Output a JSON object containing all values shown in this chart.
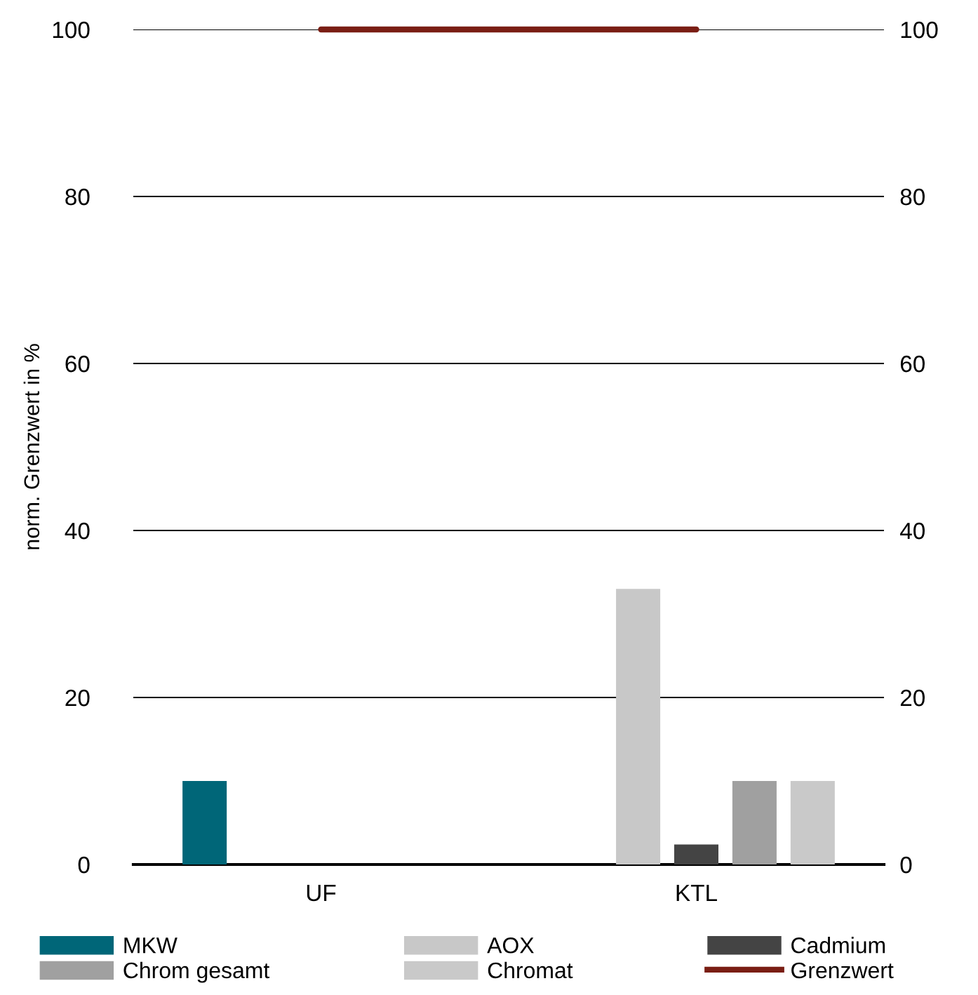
{
  "chart_data": {
    "type": "bar",
    "ylabel": "norm. Grenzwert in %",
    "categories": [
      "UF",
      "KTL"
    ],
    "series": [
      {
        "name": "MKW",
        "color": "#006678",
        "values": [
          10,
          null
        ]
      },
      {
        "name": "AOX",
        "color": "#c8c8c8",
        "values": [
          null,
          33
        ]
      },
      {
        "name": "Cadmium",
        "color": "#444444",
        "values": [
          null,
          2.4
        ]
      },
      {
        "name": "Chrom gesamt",
        "color": "#a0a0a0",
        "values": [
          null,
          10
        ]
      },
      {
        "name": "Chromat",
        "color": "#c9c9c9",
        "values": [
          null,
          10
        ]
      },
      {
        "name": "Grenzwert",
        "type": "line",
        "color": "#7a1e14",
        "values": [
          100,
          100
        ]
      }
    ],
    "ylim": [
      0,
      100
    ],
    "yticks": [
      0,
      20,
      40,
      60,
      80,
      100
    ],
    "y2lim": [
      0,
      100
    ],
    "y2ticks": [
      0,
      20,
      40,
      60,
      80,
      100
    ],
    "grid": "y",
    "legend": "bottom"
  }
}
